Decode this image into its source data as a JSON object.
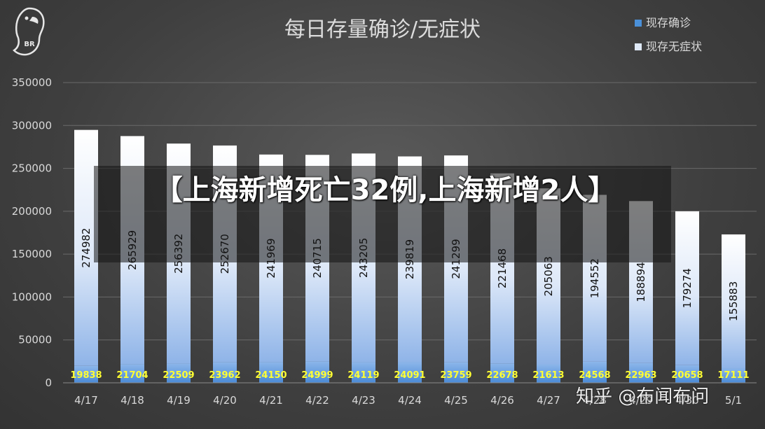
{
  "overlay": {
    "headline": "【上海新增死亡32例,上海新增2人】"
  },
  "watermark": "知乎 @布闻布问",
  "logo": {
    "text": "BR",
    "icon": "parrot-logo-icon"
  },
  "colors": {
    "confirmed": "#4a90d9",
    "asymptomatic": "#dfe9f7",
    "data_label_confirmed": "#ffff33",
    "data_label_asymptomatic": "#111111",
    "text": "#d9d9d9"
  },
  "chart_data": {
    "type": "bar",
    "stacked": true,
    "title": "每日存量确诊/无症状",
    "categories": [
      "4/17",
      "4/18",
      "4/19",
      "4/20",
      "4/21",
      "4/22",
      "4/23",
      "4/24",
      "4/25",
      "4/26",
      "4/27",
      "4/28",
      "4/29",
      "4/30",
      "5/1"
    ],
    "series": [
      {
        "name": "现存确诊",
        "values": [
          19838,
          21704,
          22509,
          23962,
          24150,
          24999,
          24119,
          24091,
          23759,
          22678,
          21613,
          24568,
          22963,
          20658,
          17111
        ]
      },
      {
        "name": "现存无症状",
        "values": [
          274982,
          265929,
          256392,
          252670,
          241969,
          240715,
          243205,
          239819,
          241299,
          221468,
          205063,
          194552,
          188894,
          179274,
          155883
        ]
      }
    ],
    "ylim": [
      0,
      350000
    ],
    "yticks": [
      "0",
      "50000",
      "100000",
      "150000",
      "200000",
      "250000",
      "300000",
      "350000"
    ],
    "grid": true,
    "legend": "top-right"
  }
}
